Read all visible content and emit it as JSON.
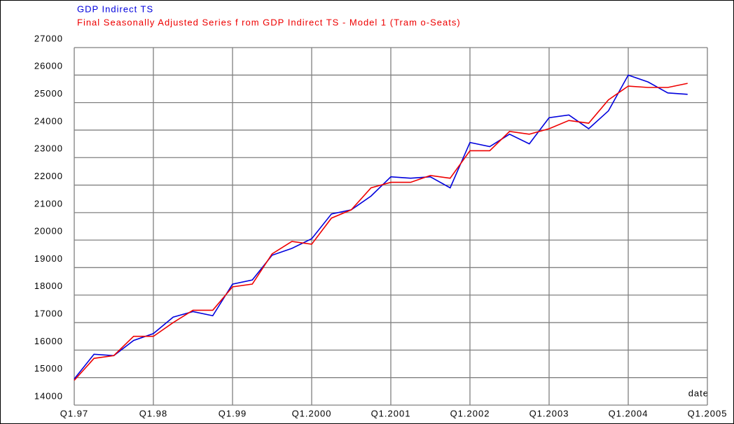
{
  "chart_data": {
    "type": "line",
    "categories": [
      "Q1.97",
      null,
      null,
      null,
      "Q1.98",
      null,
      null,
      null,
      "Q1.99",
      null,
      null,
      null,
      "Q1.2000",
      null,
      null,
      null,
      "Q1.2001",
      null,
      null,
      null,
      "Q1.2002",
      null,
      null,
      null,
      "Q1.2003",
      null,
      null,
      null,
      "Q1.2004",
      null,
      null,
      null,
      "Q1.2005"
    ],
    "x_label": "date",
    "series": [
      {
        "name": "GDP  Indirect TS",
        "color": "#0000dd",
        "values": [
          14950,
          15850,
          15800,
          16350,
          16600,
          17200,
          17400,
          17250,
          18400,
          18550,
          19450,
          19700,
          20050,
          20950,
          21100,
          21600,
          22300,
          22250,
          22300,
          21900,
          23550,
          23400,
          23850,
          23500,
          24450,
          24550,
          24050,
          24700,
          26000,
          25750,
          25350,
          25300,
          null
        ]
      },
      {
        "name": "Final Seasonally  Adjusted Series f rom GDP  Indirect TS - Model 1 (Tram o-Seats)",
        "color": "#ee0000",
        "values": [
          14900,
          15700,
          15800,
          16500,
          16500,
          17000,
          17450,
          17450,
          18300,
          18400,
          19500,
          19950,
          19850,
          20800,
          21100,
          21900,
          22100,
          22100,
          22350,
          22250,
          23250,
          23250,
          23950,
          23850,
          24050,
          24350,
          24250,
          25100,
          25600,
          25550,
          25550,
          25700,
          null
        ]
      }
    ],
    "ylim": [
      14000,
      27000
    ],
    "yticks": [
      14000,
      15000,
      16000,
      17000,
      18000,
      19000,
      20000,
      21000,
      22000,
      23000,
      24000,
      25000,
      26000,
      27000
    ],
    "grid": true
  }
}
